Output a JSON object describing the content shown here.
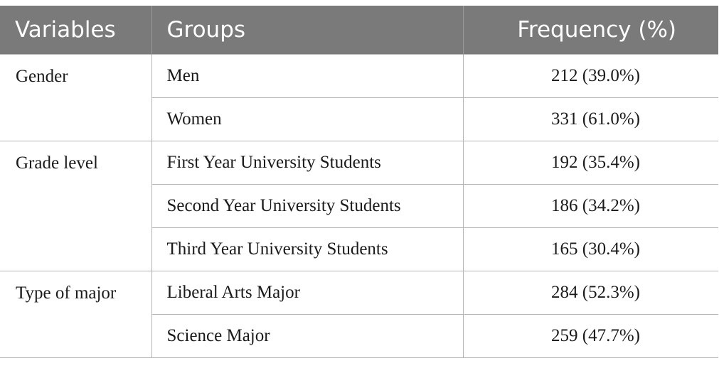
{
  "table": {
    "headers": {
      "variables": "Variables",
      "groups": "Groups",
      "frequency": "Frequency (%)"
    },
    "sections": [
      {
        "variable": "Gender",
        "rows": [
          {
            "group": "Men",
            "frequency": "212 (39.0%)"
          },
          {
            "group": "Women",
            "frequency": "331 (61.0%)"
          }
        ]
      },
      {
        "variable": "Grade level",
        "rows": [
          {
            "group": "First Year University Students",
            "frequency": "192 (35.4%)"
          },
          {
            "group": "Second Year University Students",
            "frequency": "186 (34.2%)"
          },
          {
            "group": "Third Year University Students",
            "frequency": "165 (30.4%)"
          }
        ]
      },
      {
        "variable": "Type of major",
        "rows": [
          {
            "group": "Liberal Arts Major",
            "frequency": "284 (52.3%)"
          },
          {
            "group": "Science Major",
            "frequency": "259 (47.7%)"
          }
        ]
      }
    ]
  },
  "colors": {
    "header_bg": "#7a7a7a",
    "header_text": "#ffffff",
    "grid": "#b5b5b5"
  }
}
